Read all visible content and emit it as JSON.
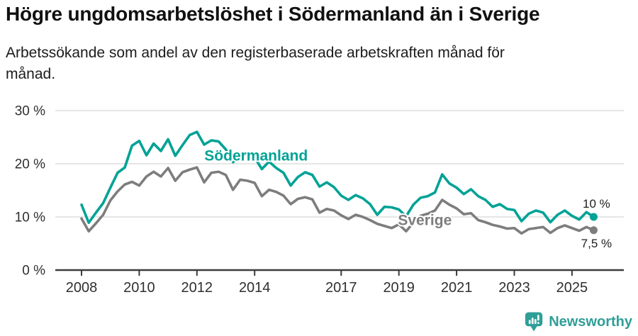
{
  "title": "Högre ungdomsarbetslöshet i Södermanland än i Sverige",
  "subtitle": "Arbetssökande som andel av den registerbaserade arbetskraften månad för månad.",
  "footer": {
    "brand": "Newsworthy",
    "logo_icon": "speech-bubble-bar-chart-icon"
  },
  "colors": {
    "sodermanland": "#00a296",
    "sverige": "#7d7d7d",
    "grid": "#d8d8d8",
    "axis": "#3b3b3b",
    "tick_text": "#2f2f2f",
    "title_text": "#111111",
    "brand_teal": "#2f9e97"
  },
  "chart_data": {
    "type": "line",
    "title": "Högre ungdomsarbetslöshet i Södermanland än i Sverige",
    "subtitle": "Arbetssökande som andel av den registerbaserade arbetskraften månad för månad.",
    "ylabel": "",
    "xlabel": "",
    "unit": "%",
    "ylim": [
      0,
      30
    ],
    "xlim": [
      2007.1,
      2026.9
    ],
    "grid": "horizontal",
    "yticks": [
      {
        "value": 0,
        "label": "0 %"
      },
      {
        "value": 10,
        "label": "10 %"
      },
      {
        "value": 20,
        "label": "20 %"
      },
      {
        "value": 30,
        "label": "30 %"
      }
    ],
    "xticks": [
      {
        "value": 2008,
        "label": "2008"
      },
      {
        "value": 2010,
        "label": "2010"
      },
      {
        "value": 2012,
        "label": "2012"
      },
      {
        "value": 2014,
        "label": "2014"
      },
      {
        "value": 2017,
        "label": "2017"
      },
      {
        "value": 2019,
        "label": "2019"
      },
      {
        "value": 2021,
        "label": "2021"
      },
      {
        "value": 2023,
        "label": "2023"
      },
      {
        "value": 2025,
        "label": "2025"
      }
    ],
    "x_years": [
      2008.0,
      2008.25,
      2008.5,
      2008.75,
      2009.0,
      2009.25,
      2009.5,
      2009.75,
      2010.0,
      2010.25,
      2010.5,
      2010.75,
      2011.0,
      2011.25,
      2011.5,
      2011.75,
      2012.0,
      2012.25,
      2012.5,
      2012.75,
      2013.0,
      2013.25,
      2013.5,
      2013.75,
      2014.0,
      2014.25,
      2014.5,
      2014.75,
      2015.0,
      2015.25,
      2015.5,
      2015.75,
      2016.0,
      2016.25,
      2016.5,
      2016.75,
      2017.0,
      2017.25,
      2017.5,
      2017.75,
      2018.0,
      2018.25,
      2018.5,
      2018.75,
      2019.0,
      2019.25,
      2019.5,
      2019.75,
      2020.0,
      2020.25,
      2020.5,
      2020.75,
      2021.0,
      2021.25,
      2021.5,
      2021.75,
      2022.0,
      2022.25,
      2022.5,
      2022.75,
      2023.0,
      2023.25,
      2023.5,
      2023.75,
      2024.0,
      2024.25,
      2024.5,
      2024.75,
      2025.0,
      2025.25,
      2025.5,
      2025.75
    ],
    "series": [
      {
        "id": "sodermanland",
        "name": "Södermanland",
        "color_key": "sodermanland",
        "end_label": "10 %",
        "end_label_dx": 4,
        "end_label_dy": -13,
        "label_pos": {
          "year": 2014.05,
          "value": 20.6
        },
        "values": [
          12.3,
          8.9,
          10.8,
          12.6,
          15.5,
          18.3,
          19.3,
          23.4,
          24.3,
          21.6,
          23.8,
          22.4,
          24.6,
          21.5,
          23.5,
          25.4,
          26.0,
          23.6,
          24.4,
          24.2,
          22.7,
          20.3,
          21.4,
          21.8,
          21.2,
          19.0,
          20.4,
          19.2,
          18.3,
          15.9,
          17.5,
          18.4,
          17.9,
          15.7,
          16.5,
          15.6,
          14.0,
          13.2,
          14.1,
          13.5,
          12.4,
          10.4,
          11.9,
          11.8,
          11.4,
          10.1,
          12.3,
          13.6,
          13.9,
          14.6,
          18.0,
          16.3,
          15.5,
          14.3,
          15.2,
          13.9,
          13.2,
          11.9,
          12.4,
          11.5,
          11.3,
          9.2,
          10.6,
          11.2,
          10.8,
          9.0,
          10.4,
          11.2,
          10.2,
          9.5,
          10.9,
          10.0
        ]
      },
      {
        "id": "sverige",
        "name": "Sverige",
        "color_key": "sverige",
        "end_label": "7,5 %",
        "end_label_dx": 4,
        "end_label_dy": 24,
        "label_pos": {
          "year": 2019.9,
          "value": 8.5
        },
        "values": [
          9.7,
          7.3,
          8.8,
          10.4,
          13.1,
          14.8,
          16.1,
          16.6,
          15.9,
          17.6,
          18.5,
          17.6,
          19.2,
          16.8,
          18.4,
          18.9,
          19.3,
          16.5,
          18.3,
          18.5,
          17.9,
          15.1,
          17.0,
          16.8,
          16.4,
          13.9,
          15.1,
          14.7,
          14.0,
          12.4,
          13.4,
          13.7,
          13.3,
          10.8,
          11.5,
          11.2,
          10.3,
          9.6,
          10.4,
          10.0,
          9.4,
          8.7,
          8.3,
          7.9,
          8.6,
          7.3,
          8.9,
          10.2,
          10.6,
          11.2,
          13.2,
          12.3,
          11.6,
          10.5,
          10.7,
          9.4,
          9.0,
          8.5,
          8.2,
          7.8,
          7.9,
          6.9,
          7.7,
          7.9,
          8.1,
          7.0,
          7.9,
          8.4,
          7.9,
          7.4,
          8.1,
          7.5
        ]
      }
    ]
  }
}
